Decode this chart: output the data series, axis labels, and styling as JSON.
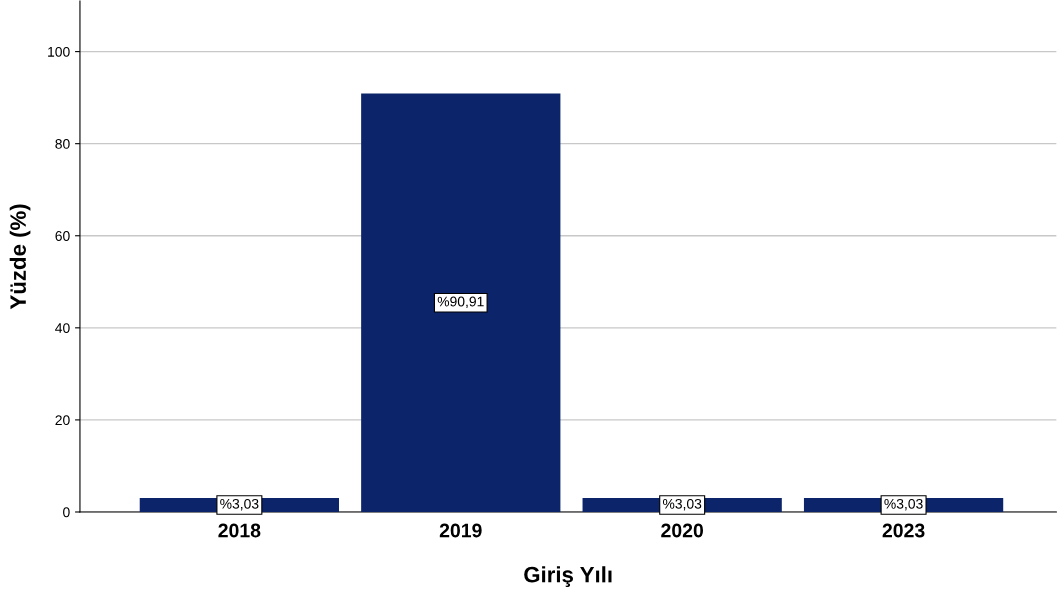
{
  "chart_data": {
    "type": "bar",
    "xlabel": "Giriş Yılı",
    "ylabel": "Yüzde (%)",
    "categories": [
      "2018",
      "2019",
      "2020",
      "2023"
    ],
    "values": [
      3.03,
      90.91,
      3.03,
      3.03
    ],
    "value_labels": [
      "%3,03",
      "%90,91",
      "%3,03",
      "%3,03"
    ],
    "color": "#0c2469",
    "ylim": [
      0,
      111
    ],
    "yticks": [
      0,
      20,
      40,
      60,
      80,
      100
    ],
    "grid": "y"
  }
}
